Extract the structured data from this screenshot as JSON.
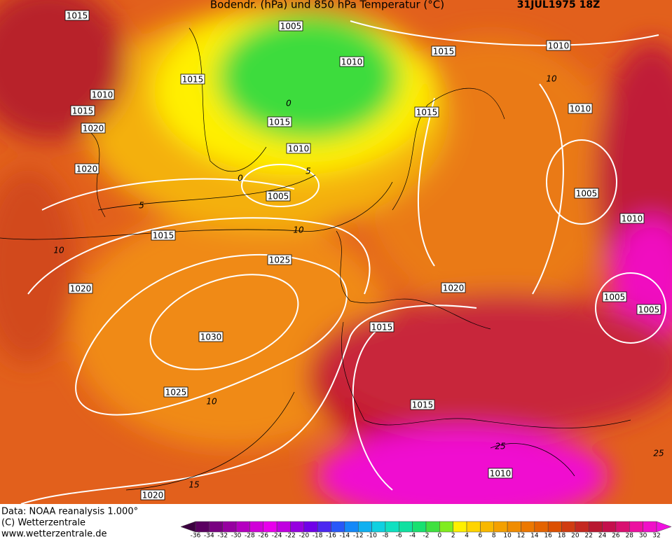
{
  "header": {
    "title": "Bodendr. (hPa) und 850 hPa Temperatur (°C)",
    "date": "31JUL1975 18Z"
  },
  "footer": {
    "lines": [
      "Data: NOAA reanalysis 1.000°",
      "(C) Wetterzentrale",
      "www.wetterzentrale.de"
    ]
  },
  "isobar_labels": [
    "1015",
    "1005",
    "1015",
    "1010",
    "1010",
    "1015",
    "1010",
    "1015",
    "1015",
    "1010",
    "1015",
    "1020",
    "1010",
    "1020",
    "1005",
    "1005",
    "1010",
    "1015",
    "1025",
    "1020",
    "1020",
    "1005",
    "1005",
    "1015",
    "1030",
    "1025",
    "1015",
    "1010",
    "1020"
  ],
  "isotherm_labels": [
    "10",
    "0",
    "0",
    "5",
    "5",
    "10",
    "10",
    "10",
    "15",
    "25",
    "25"
  ],
  "colorbar": {
    "labels": [
      -36,
      -34,
      -32,
      -30,
      -28,
      -26,
      -24,
      -22,
      -20,
      -18,
      -16,
      -14,
      -12,
      -10,
      -8,
      -6,
      -4,
      -2,
      0,
      2,
      4,
      6,
      8,
      10,
      12,
      14,
      16,
      18,
      20,
      22,
      24,
      26,
      28,
      30,
      32
    ]
  }
}
